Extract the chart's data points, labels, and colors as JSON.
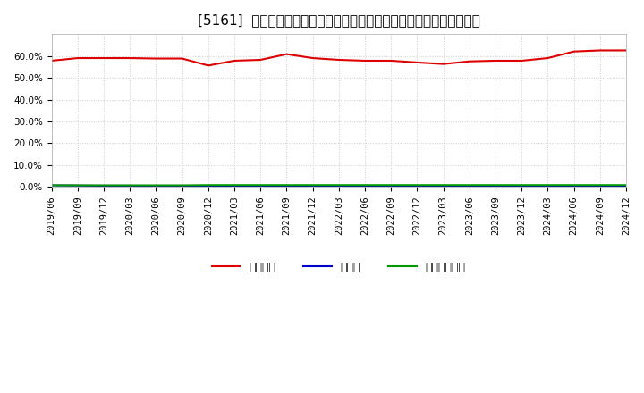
{
  "title": "[5161]  自己資本、のれん、繰延税金資産の総資産に対する比率の推移",
  "background_color": "#ffffff",
  "plot_background_color": "#ffffff",
  "grid_color": "#cccccc",
  "x_labels": [
    "2019/06",
    "2019/09",
    "2019/12",
    "2020/03",
    "2020/06",
    "2020/09",
    "2020/12",
    "2021/03",
    "2021/06",
    "2021/09",
    "2021/12",
    "2022/03",
    "2022/06",
    "2022/09",
    "2022/12",
    "2023/03",
    "2023/06",
    "2023/09",
    "2023/12",
    "2024/03",
    "2024/06",
    "2024/09",
    "2024/12"
  ],
  "jiko_shihon": [
    0.578,
    0.59,
    0.59,
    0.59,
    0.588,
    0.588,
    0.556,
    0.578,
    0.582,
    0.608,
    0.59,
    0.582,
    0.578,
    0.578,
    0.57,
    0.563,
    0.575,
    0.578,
    0.578,
    0.59,
    0.62,
    0.625,
    0.625
  ],
  "noren": [
    0.008,
    0.007,
    0.006,
    0.006,
    0.005,
    0.005,
    0.004,
    0.004,
    0.004,
    0.004,
    0.003,
    0.003,
    0.003,
    0.003,
    0.003,
    0.002,
    0.002,
    0.002,
    0.002,
    0.002,
    0.002,
    0.002,
    0.002
  ],
  "kurinobe_zeikin": [
    0.008,
    0.008,
    0.008,
    0.008,
    0.008,
    0.008,
    0.009,
    0.009,
    0.009,
    0.009,
    0.009,
    0.009,
    0.009,
    0.009,
    0.009,
    0.009,
    0.009,
    0.009,
    0.009,
    0.009,
    0.009,
    0.009,
    0.009
  ],
  "jiko_color": "#dd0000",
  "noren_color": "#0000cc",
  "kurinobe_color": "#009900",
  "ylim": [
    0.0,
    0.7
  ],
  "yticks": [
    0.0,
    0.1,
    0.2,
    0.3,
    0.4,
    0.5,
    0.6
  ],
  "legend_labels": [
    "自己資本",
    "のれん",
    "繰延税金資産"
  ],
  "title_fontsize": 11,
  "tick_fontsize": 7.5,
  "legend_fontsize": 9
}
